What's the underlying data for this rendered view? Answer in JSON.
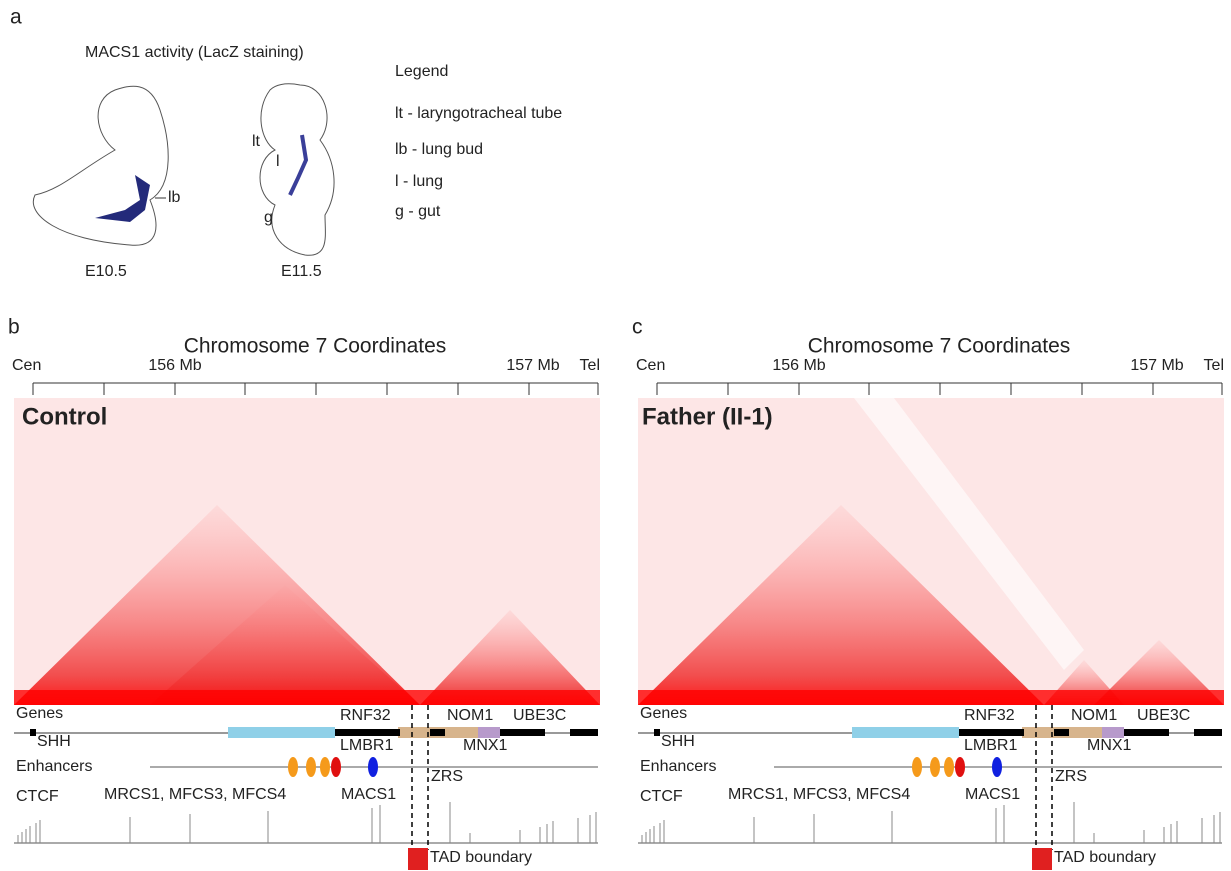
{
  "panel_a": {
    "label": "a",
    "title": "MACS1 activity (LacZ staining)",
    "embryo_labels": [
      "lb",
      "lt",
      "l",
      "g"
    ],
    "stages": [
      "E10.5",
      "E11.5"
    ],
    "legend_title": "Legend",
    "legend_items": [
      "lt - laryngotracheal tube",
      "lb - lung bud",
      "l - lung",
      "g - gut"
    ]
  },
  "panels": [
    {
      "label": "b",
      "sample": "Control",
      "axis_title": "Chromosome 7 Coordinates",
      "axis_labels": [
        "Cen",
        "156 Mb",
        "157 Mb",
        "Tel"
      ],
      "tracks": [
        "Genes",
        "Enhancers",
        "CTCF"
      ],
      "genes": [
        "RNF32",
        "NOM1",
        "UBE3C",
        "SHH",
        "LMBR1",
        "MNX1"
      ],
      "enhancers": [
        "MRCS1, MFCS3, MFCS4",
        "MACS1",
        "ZRS"
      ],
      "boundary": "TAD boundary"
    },
    {
      "label": "c",
      "sample": "Father (II-1)",
      "axis_title": "Chromosome 7 Coordinates",
      "axis_labels": [
        "Cen",
        "156 Mb",
        "157 Mb",
        "Tel"
      ],
      "tracks": [
        "Genes",
        "Enhancers",
        "CTCF"
      ],
      "genes": [
        "RNF32",
        "NOM1",
        "UBE3C",
        "SHH",
        "LMBR1",
        "MNX1"
      ],
      "enhancers": [
        "MRCS1, MFCS3, MFCS4",
        "MACS1",
        "ZRS"
      ],
      "boundary": "TAD boundary"
    }
  ]
}
